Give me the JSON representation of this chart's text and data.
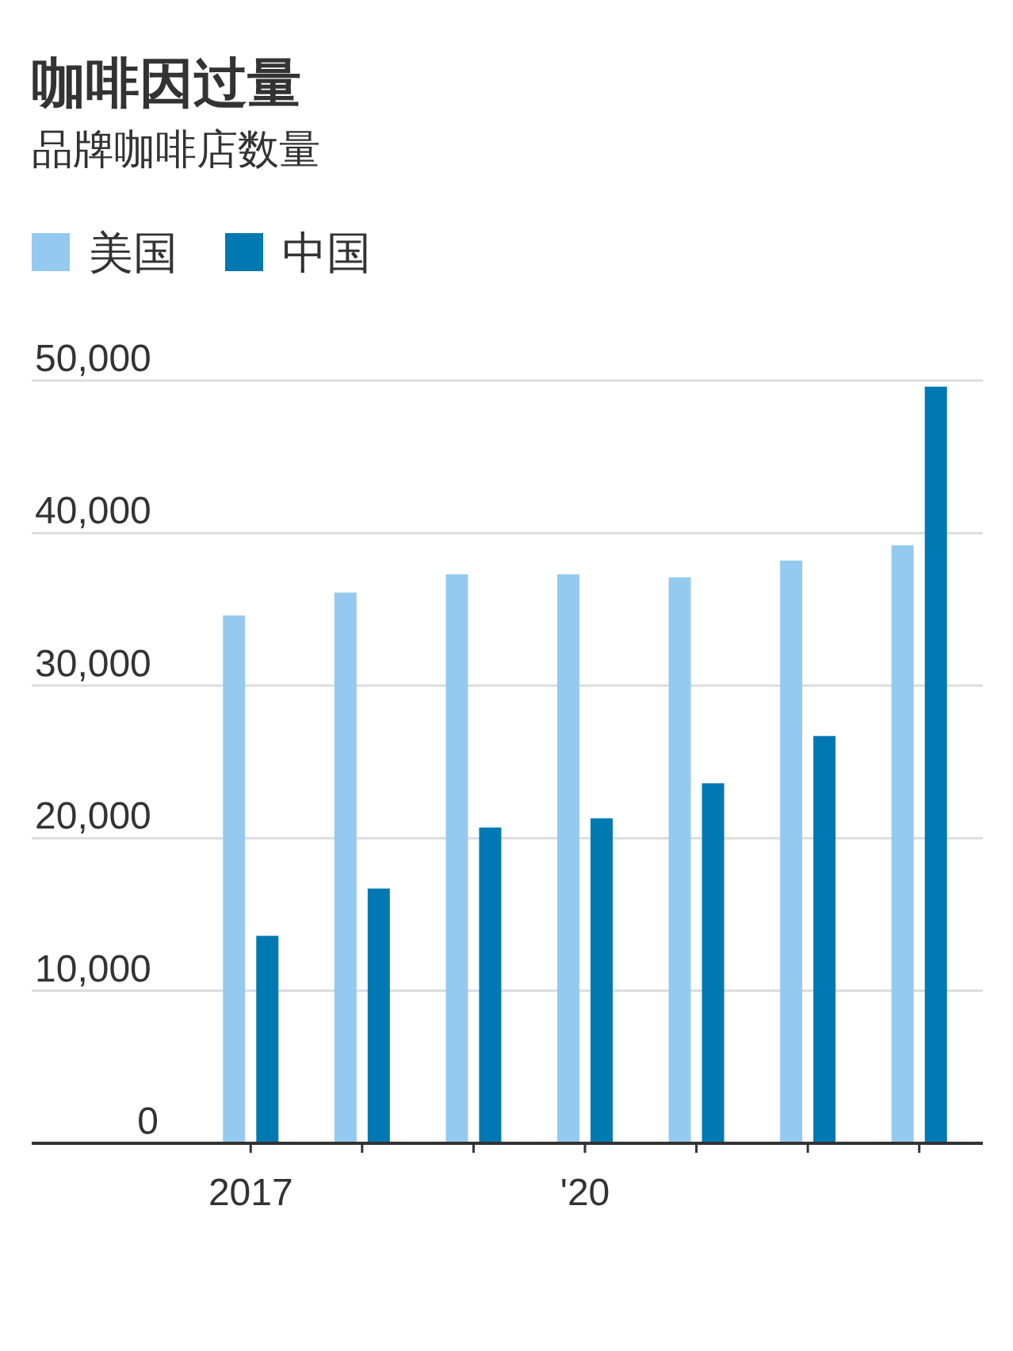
{
  "chart_data": {
    "type": "bar",
    "title": "咖啡因过量",
    "subtitle": "品牌咖啡店数量",
    "categories": [
      "2017",
      null,
      null,
      "'20",
      null,
      null,
      null
    ],
    "series": [
      {
        "name": "美国",
        "color": "#94caef",
        "values": [
          34600,
          36100,
          37300,
          37300,
          37100,
          38200,
          39200
        ]
      },
      {
        "name": "中国",
        "color": "#0079b3",
        "values": [
          13600,
          16700,
          20700,
          21300,
          23600,
          26700,
          49600
        ]
      }
    ],
    "ylim": [
      0,
      50000
    ],
    "yticks": [
      0,
      {
        "value": 10000,
        "label": "10,000"
      },
      {
        "value": 20000,
        "label": "20,000"
      },
      {
        "value": 30000,
        "label": "30,000"
      },
      {
        "value": 40000,
        "label": "40,000"
      },
      {
        "value": 50000,
        "label": "50,000"
      }
    ],
    "grid": "y",
    "legend": "top left"
  }
}
